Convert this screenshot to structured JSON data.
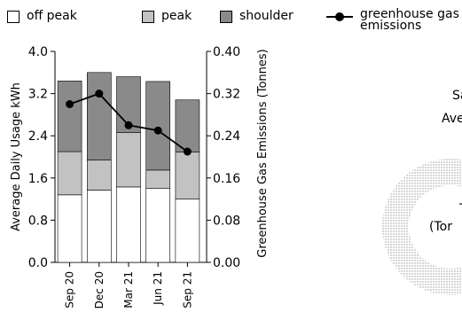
{
  "legend": {
    "offpeak_label": "off peak",
    "peak_label": "peak",
    "shoulder_label": "shoulder",
    "ghg_label": "greenhouse gas emissions"
  },
  "colors": {
    "off_peak": "#ffffff",
    "peak": "#c2c2c2",
    "shoulder": "#8a8a8a",
    "emissions_line": "#000000",
    "ring": "#d9d9d9"
  },
  "summary": {
    "line1": "Sa",
    "line2": "Ave",
    "line3": "To",
    "line4": "(Tor"
  },
  "chart_data": {
    "type": "bar",
    "stacked": true,
    "categories": [
      "Sep 20",
      "Dec 20",
      "Mar 21",
      "Jun 21",
      "Sep 21"
    ],
    "series": [
      {
        "name": "off peak",
        "values": [
          1.28,
          1.37,
          1.43,
          1.4,
          1.2
        ]
      },
      {
        "name": "peak",
        "values": [
          0.82,
          0.57,
          1.03,
          0.35,
          0.89
        ]
      },
      {
        "name": "shoulder",
        "values": [
          1.34,
          1.66,
          1.06,
          1.68,
          0.99
        ]
      },
      {
        "name": "greenhouse gas emissions",
        "type": "line",
        "axis": "right",
        "values": [
          0.3,
          0.32,
          0.26,
          0.25,
          0.21
        ]
      }
    ],
    "ylabel": "Average Daily Usage kWh",
    "ylim": [
      0,
      4.0
    ],
    "yticks": [
      "0.0",
      "0.8",
      "1.6",
      "2.4",
      "3.2",
      "4.0"
    ],
    "ylabel_right": "Greenhouse Gas Emissions (Tonnes)",
    "ylim_right": [
      0,
      0.4
    ],
    "yticks_right": [
      "0.00",
      "0.08",
      "0.16",
      "0.24",
      "0.32",
      "0.40"
    ],
    "grid": false,
    "legend_position": "top"
  }
}
